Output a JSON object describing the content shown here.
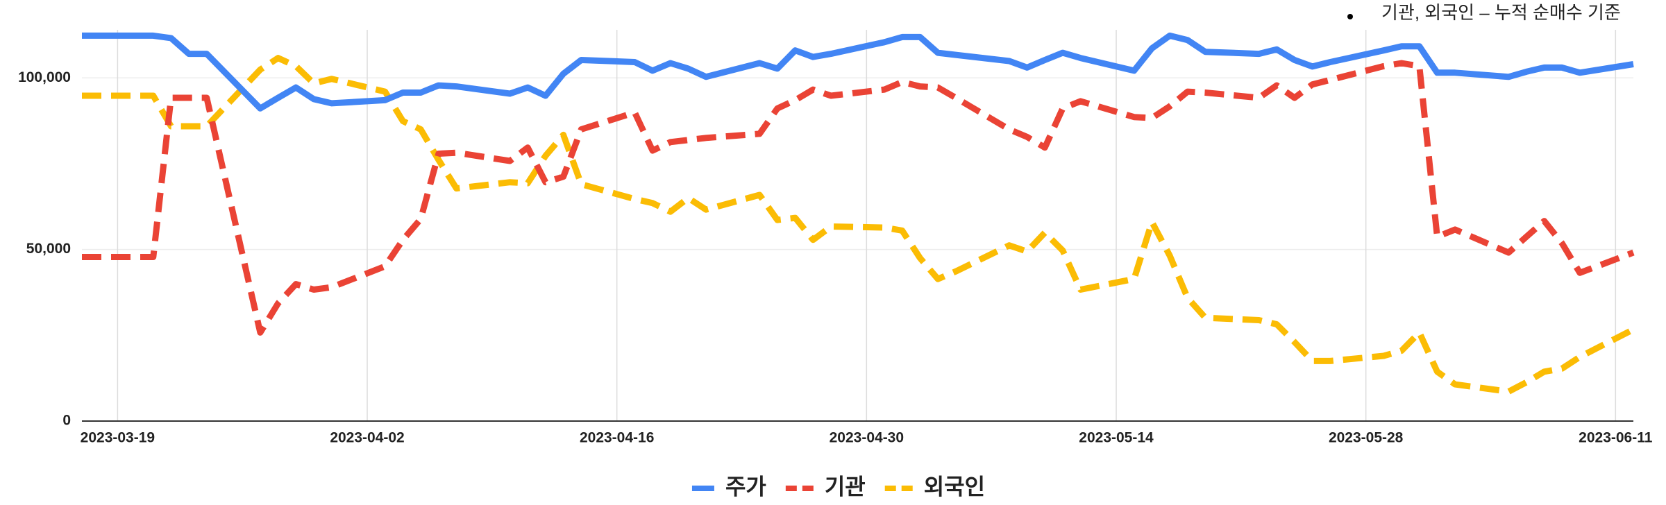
{
  "chart_data": {
    "type": "line",
    "note": "기관, 외국인 – 누적 순매수 기준",
    "x": [
      "2023-03-17",
      "2023-03-20",
      "2023-03-21",
      "2023-03-22",
      "2023-03-23",
      "2023-03-24",
      "2023-03-27",
      "2023-03-28",
      "2023-03-29",
      "2023-03-30",
      "2023-03-31",
      "2023-04-03",
      "2023-04-04",
      "2023-04-05",
      "2023-04-06",
      "2023-04-07",
      "2023-04-10",
      "2023-04-11",
      "2023-04-12",
      "2023-04-13",
      "2023-04-14",
      "2023-04-17",
      "2023-04-18",
      "2023-04-19",
      "2023-04-20",
      "2023-04-21",
      "2023-04-24",
      "2023-04-25",
      "2023-04-26",
      "2023-04-27",
      "2023-04-28",
      "2023-05-01",
      "2023-05-02",
      "2023-05-03",
      "2023-05-04",
      "2023-05-05",
      "2023-05-08",
      "2023-05-09",
      "2023-05-10",
      "2023-05-11",
      "2023-05-12",
      "2023-05-15",
      "2023-05-16",
      "2023-05-17",
      "2023-05-18",
      "2023-05-19",
      "2023-05-22",
      "2023-05-23",
      "2023-05-24",
      "2023-05-25",
      "2023-05-26",
      "2023-05-29",
      "2023-05-30",
      "2023-05-31",
      "2023-06-01",
      "2023-06-02",
      "2023-06-05",
      "2023-06-06",
      "2023-06-07",
      "2023-06-08",
      "2023-06-09",
      "2023-06-12"
    ],
    "series": [
      {
        "name": "주가",
        "color": "#4285f4",
        "line_style": "solid",
        "values": [
          112300,
          112300,
          112300,
          111600,
          107000,
          107000,
          91100,
          94200,
          97200,
          93800,
          92600,
          93500,
          95700,
          95700,
          97800,
          97500,
          95400,
          97200,
          94800,
          101200,
          105200,
          104600,
          102100,
          104300,
          102700,
          100300,
          104300,
          102700,
          108000,
          106100,
          107000,
          110400,
          111900,
          111900,
          107300,
          106700,
          104900,
          103000,
          105200,
          107300,
          105800,
          102100,
          108600,
          112300,
          111000,
          107600,
          107000,
          108300,
          105200,
          103300,
          104600,
          108000,
          109200,
          109200,
          101500,
          101500,
          100300,
          101800,
          103000,
          103000,
          101500,
          104000
        ]
      },
      {
        "name": "기관",
        "color": "#ea4335",
        "line_style": "dashed",
        "values": [
          47800,
          47800,
          47800,
          94200,
          94200,
          94200,
          25800,
          34300,
          39900,
          38300,
          39000,
          45100,
          52800,
          58900,
          77900,
          78200,
          75800,
          79700,
          69600,
          71200,
          85000,
          89900,
          78800,
          81300,
          81900,
          82500,
          83700,
          91100,
          93500,
          96600,
          94800,
          96600,
          98800,
          97500,
          97200,
          94200,
          85000,
          82800,
          79700,
          91100,
          93200,
          88600,
          88300,
          91700,
          96000,
          95700,
          94200,
          97800,
          94200,
          98100,
          99400,
          103400,
          104300,
          103400,
          53700,
          55800,
          49100,
          53700,
          58300,
          51800,
          43200,
          49100
        ]
      },
      {
        "name": "외국인",
        "color": "#fbbc04",
        "line_style": "dashed",
        "values": [
          94800,
          94800,
          94800,
          85900,
          85900,
          85900,
          102400,
          105800,
          103400,
          98400,
          99700,
          96000,
          87400,
          85000,
          76100,
          67800,
          69600,
          69300,
          77300,
          83400,
          69000,
          64700,
          63500,
          61000,
          65000,
          61600,
          65900,
          58600,
          59200,
          52800,
          56700,
          56400,
          55500,
          47500,
          41400,
          43600,
          51200,
          49400,
          54900,
          49700,
          38300,
          41400,
          58000,
          48200,
          35900,
          30100,
          29400,
          28200,
          23000,
          17500,
          17500,
          19000,
          20500,
          25800,
          14400,
          10700,
          8600,
          11300,
          14400,
          15300,
          18700,
          26700
        ]
      }
    ],
    "xlim": [
      "2023-03-17",
      "2023-06-12"
    ],
    "xticks": [
      "2023-03-19",
      "2023-04-02",
      "2023-04-16",
      "2023-04-30",
      "2023-05-14",
      "2023-05-28",
      "2023-06-11"
    ],
    "ylim": [
      0,
      114000
    ],
    "yticks": [
      0,
      {
        "value": 50000,
        "label": "50,000"
      },
      {
        "value": 100000,
        "label": "100,000"
      }
    ],
    "grid": true,
    "legend": "bottom"
  }
}
